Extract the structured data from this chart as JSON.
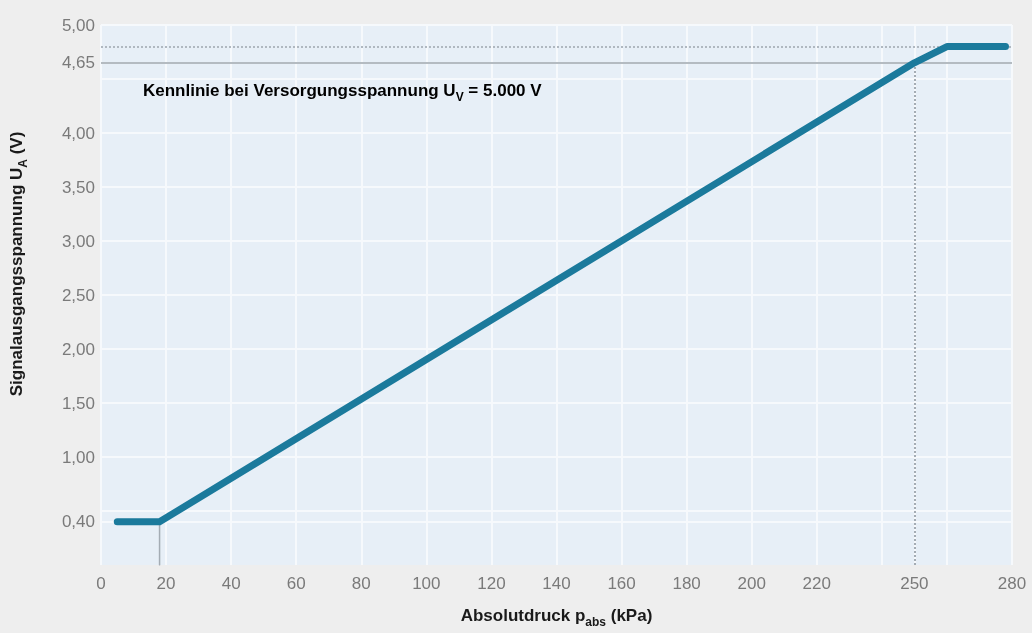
{
  "chart_data": {
    "type": "line",
    "series": [
      {
        "x": [
          5,
          18,
          250,
          260,
          278
        ],
        "values": [
          0.4,
          0.4,
          4.65,
          4.8,
          4.8
        ],
        "color": "#1b7a9c"
      },
      {
        "x": [
          18,
          18
        ],
        "values": [
          0,
          0.4
        ],
        "color": "#a4acb4"
      }
    ],
    "xlabel": "Absolutdruck p$_{abs}$ (kPa)",
    "ylabel": "Signalausgangsspannung U$_{A}$ (V)",
    "annotations": [
      "Kennlinie bei Versorgungsspannung U$_{V}$ = 5.000 V"
    ],
    "xlim": [
      0,
      280
    ],
    "ylim": [
      0,
      5
    ],
    "xticks": [
      0,
      20,
      40,
      60,
      80,
      100,
      120,
      140,
      160,
      180,
      200,
      220,
      {
        "value": 240,
        "label": null
      },
      250,
      {
        "value": 260,
        "label": null
      },
      280
    ],
    "yticks": [
      {
        "value": 0.4,
        "label": "0,40"
      },
      {
        "value": 0.5,
        "label": null
      },
      {
        "value": 1,
        "label": "1,00"
      },
      {
        "value": 1.5,
        "label": "1,50"
      },
      {
        "value": 2,
        "label": "2,00"
      },
      {
        "value": 2.5,
        "label": "2,50"
      },
      {
        "value": 3,
        "label": "3,00"
      },
      {
        "value": 3.5,
        "label": "3,50"
      },
      {
        "value": 4,
        "label": "4,00"
      },
      {
        "value": 4.5,
        "label": null
      },
      {
        "value": 4.65,
        "label": "4,65"
      },
      {
        "value": 5,
        "label": "5,00"
      }
    ],
    "ref_lines": [
      {
        "axis": "y",
        "value": 4.65,
        "color": "#9ea6ae",
        "line_style": "solid"
      },
      {
        "axis": "y",
        "value": 4.8,
        "color": "#b0b8c0",
        "line_style": "dotted"
      },
      {
        "axis": "x",
        "value": 250,
        "color": "#a4acb4",
        "line_style": "dotted"
      }
    ],
    "grid": true,
    "marker": "none",
    "line_style": "solid"
  }
}
